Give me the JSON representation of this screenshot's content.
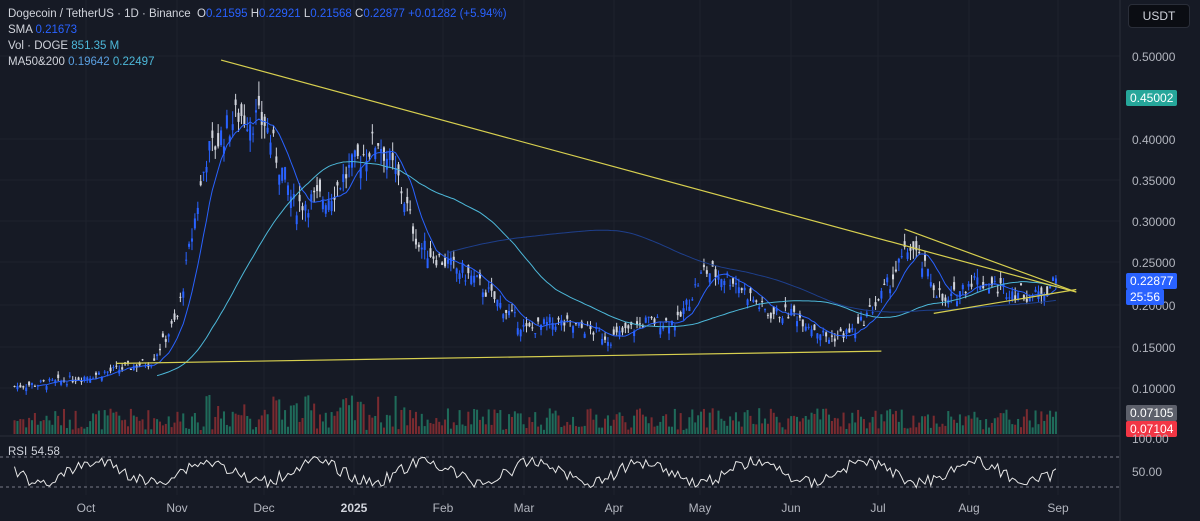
{
  "legend": {
    "symbol": "Dogecoin / TetherUS · 1D · Binance",
    "o_label": "O",
    "o_val": "0.21595",
    "h_label": "H",
    "h_val": "0.22921",
    "l_label": "L",
    "l_val": "0.21568",
    "c_label": "C",
    "c_val": "0.22877",
    "change": "+0.01282 (+5.94%)",
    "sma_label": "SMA",
    "sma_val": "0.21673",
    "vol_label": "Vol · DOGE",
    "vol_val": "851.35 M",
    "ma_label": "MA50&200",
    "ma50_val": "0.19642",
    "ma200_val": "0.22497"
  },
  "quote_button": "USDT",
  "price_axis": [
    "0.50000",
    "0.40000",
    "0.35000",
    "0.30000",
    "0.25000",
    "0.20000",
    "0.15000",
    "0.10000"
  ],
  "price_tags": {
    "level": "0.45002",
    "last": "0.22877",
    "countdown": "25:56",
    "vol_a": "0.07105",
    "vol_b": "0.07104",
    "rsi_top": "100.00"
  },
  "rsi": {
    "label": "RSI",
    "value": "54.58",
    "axis_mid": "50.00"
  },
  "date_axis": [
    "Oct",
    "Nov",
    "Dec",
    "2025",
    "Feb",
    "Mar",
    "Apr",
    "May",
    "Jun",
    "Jul",
    "Aug",
    "Sep"
  ],
  "colors": {
    "background": "#161a25",
    "up": "#2962ff",
    "down": "#d1d4dc",
    "sma": "#2962ff",
    "ma50": "#4db8d9",
    "ma200": "#1e3f8c",
    "trendline": "#d7cf4f",
    "level_tag": "#26a69a",
    "last_tag": "#2962ff",
    "vol_up": "#1f6b5a",
    "vol_down": "#7a2b30"
  },
  "chart_data": {
    "type": "candlestick",
    "title": "Dogecoin / TetherUS · 1D · Binance",
    "ylim": [
      0.07,
      0.52
    ],
    "x": [
      "2024-09-15",
      "2024-10-01",
      "2024-10-15",
      "2024-11-01",
      "2024-11-10",
      "2024-11-20",
      "2024-12-01",
      "2024-12-10",
      "2024-12-20",
      "2025-01-01",
      "2025-01-10",
      "2025-01-18",
      "2025-01-25",
      "2025-02-01",
      "2025-02-10",
      "2025-02-20",
      "2025-03-01",
      "2025-03-10",
      "2025-03-20",
      "2025-04-01",
      "2025-04-08",
      "2025-04-20",
      "2025-05-01",
      "2025-05-10",
      "2025-05-20",
      "2025-06-01",
      "2025-06-10",
      "2025-06-22",
      "2025-07-01",
      "2025-07-10",
      "2025-07-20",
      "2025-08-01",
      "2025-08-10",
      "2025-08-20",
      "2025-09-01",
      "2025-09-08"
    ],
    "close": [
      0.102,
      0.108,
      0.118,
      0.132,
      0.185,
      0.38,
      0.43,
      0.42,
      0.32,
      0.33,
      0.37,
      0.4,
      0.35,
      0.27,
      0.25,
      0.23,
      0.2,
      0.17,
      0.18,
      0.17,
      0.16,
      0.18,
      0.18,
      0.24,
      0.23,
      0.19,
      0.19,
      0.16,
      0.17,
      0.21,
      0.27,
      0.2,
      0.23,
      0.22,
      0.21,
      0.22877
    ],
    "trendlines": [
      {
        "name": "upper",
        "from": [
          "2024-11-25",
          0.495
        ],
        "to": [
          "2025-09-15",
          0.215
        ]
      },
      {
        "name": "lower",
        "from": [
          "2024-10-20",
          0.13
        ],
        "to": [
          "2025-07-10",
          0.145
        ]
      },
      {
        "name": "wedge_top",
        "from": [
          "2025-07-18",
          0.29
        ],
        "to": [
          "2025-09-15",
          0.215
        ]
      },
      {
        "name": "wedge_bottom",
        "from": [
          "2025-07-28",
          0.19
        ],
        "to": [
          "2025-09-15",
          0.218
        ]
      }
    ],
    "grid": true
  }
}
